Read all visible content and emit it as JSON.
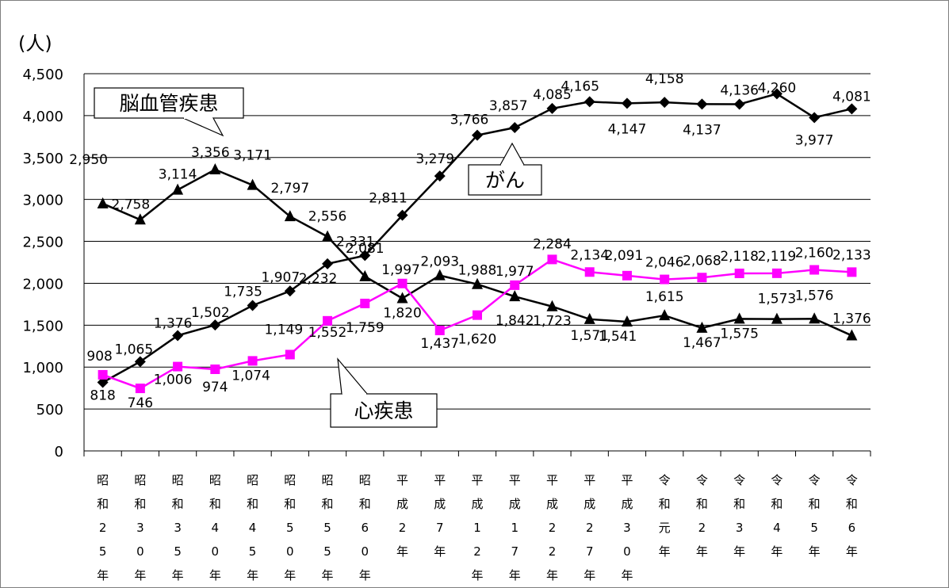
{
  "chart_data": {
    "type": "line",
    "ylabel": "(人)",
    "ylim": [
      0,
      4500
    ],
    "yticks": [
      0,
      500,
      1000,
      1500,
      2000,
      2500,
      3000,
      3500,
      4000,
      4500
    ],
    "ytick_labels": [
      "0",
      "500",
      "1,000",
      "1,500",
      "2,000",
      "2,500",
      "3,000",
      "3,500",
      "4,000",
      "4,500"
    ],
    "grid": true,
    "categories": [
      [
        "昭",
        "和",
        "2",
        "5",
        "年"
      ],
      [
        "昭",
        "和",
        "3",
        "0",
        "年"
      ],
      [
        "昭",
        "和",
        "3",
        "5",
        "年"
      ],
      [
        "昭",
        "和",
        "4",
        "0",
        "年"
      ],
      [
        "昭",
        "和",
        "4",
        "5",
        "年"
      ],
      [
        "昭",
        "和",
        "5",
        "0",
        "年"
      ],
      [
        "昭",
        "和",
        "5",
        "5",
        "年"
      ],
      [
        "昭",
        "和",
        "6",
        "0",
        "年"
      ],
      [
        "平",
        "成",
        "2",
        "年"
      ],
      [
        "平",
        "成",
        "7",
        "年"
      ],
      [
        "平",
        "成",
        "1",
        "2",
        "年"
      ],
      [
        "平",
        "成",
        "1",
        "7",
        "年"
      ],
      [
        "平",
        "成",
        "2",
        "2",
        "年"
      ],
      [
        "平",
        "成",
        "2",
        "7",
        "年"
      ],
      [
        "平",
        "成",
        "3",
        "0",
        "年"
      ],
      [
        "令",
        "和",
        "元",
        "年"
      ],
      [
        "令",
        "和",
        "2",
        "年"
      ],
      [
        "令",
        "和",
        "3",
        "年"
      ],
      [
        "令",
        "和",
        "4",
        "年"
      ],
      [
        "令",
        "和",
        "5",
        "年"
      ],
      [
        "令",
        "和",
        "6",
        "年"
      ]
    ],
    "series": [
      {
        "name": "がん",
        "marker": "diamond",
        "color": "#000000",
        "values": [
          818,
          1065,
          1376,
          1502,
          1735,
          1907,
          2232,
          2331,
          2811,
          3279,
          3766,
          3857,
          4085,
          4165,
          4147,
          4158,
          4137,
          4136,
          4260,
          3977,
          4081
        ],
        "labels": [
          "818",
          "1,065",
          "1,376",
          "1,502",
          "1,735",
          "1,907",
          "2,232",
          "2,331",
          "2,811",
          "3,279",
          "3,766",
          "3,857",
          "4,085",
          "4,165",
          "4,147",
          "4,158",
          "4,137",
          "4,136",
          "4,260",
          "3,977",
          "4,081"
        ]
      },
      {
        "name": "脳血管疾患",
        "marker": "triangle",
        "color": "#000000",
        "values": [
          2950,
          2758,
          3114,
          3356,
          3171,
          2797,
          2556,
          2081,
          1820,
          2093,
          1988,
          1842,
          1723,
          1571,
          1541,
          1615,
          1467,
          1575,
          1573,
          1576,
          1376
        ],
        "labels": [
          "2,950",
          "2,758",
          "3,114",
          "3,356",
          "3,171",
          "2,797",
          "2,556",
          "2,081",
          "1,820",
          "2,093",
          "1,988",
          "1,842",
          "1,723",
          "1,571",
          "1,541",
          "1,615",
          "1,467",
          "1,575",
          "1,573",
          "1,576",
          "1,376"
        ]
      },
      {
        "name": "心疾患",
        "marker": "square",
        "color": "#FF00FF",
        "values": [
          908,
          746,
          1006,
          974,
          1074,
          1149,
          1552,
          1759,
          1997,
          1437,
          1620,
          1977,
          2284,
          2134,
          2091,
          2046,
          2068,
          2118,
          2119,
          2160,
          2133
        ],
        "labels": [
          "908",
          "746",
          "1,006",
          "974",
          "1,074",
          "1,149",
          "1,552",
          "1,759",
          "1,997",
          "1,437",
          "1,620",
          "1,977",
          "2,284",
          "2,134",
          "2,091",
          "2,046",
          "2,068",
          "2,118",
          "2,119",
          "2,160",
          "2,133"
        ]
      }
    ],
    "callouts": [
      {
        "series": 1,
        "text": "脳血管疾患"
      },
      {
        "series": 0,
        "text": "がん"
      },
      {
        "series": 2,
        "text": "心疾患"
      }
    ]
  }
}
